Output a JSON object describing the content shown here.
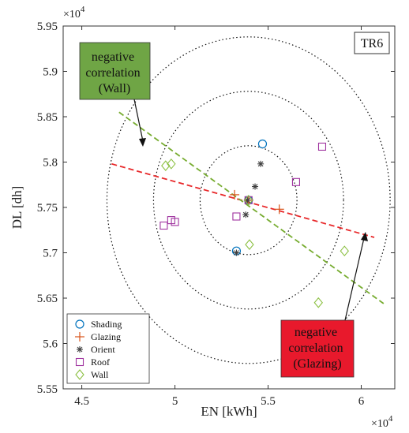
{
  "chart_data": {
    "type": "scatter",
    "title": "TR6",
    "xlabel": "EN [kWh]",
    "ylabel": "DL [dh]",
    "x_exponent": "×10",
    "y_exponent": "×10",
    "exponent_power": "4",
    "xlim": [
      44000,
      61800
    ],
    "ylim": [
      55500,
      59500
    ],
    "xticks": [
      45000,
      50000,
      55000,
      60000
    ],
    "xtick_labels": [
      "4.5",
      "5",
      "5.5",
      "6"
    ],
    "yticks": [
      55500,
      56000,
      56500,
      57000,
      57500,
      58000,
      58500,
      59000,
      59500
    ],
    "ytick_labels": [
      "5.55",
      "5.6",
      "5.65",
      "5.7",
      "5.75",
      "5.8",
      "5.85",
      "5.9",
      "5.95"
    ],
    "grid": false,
    "legend_position": "bottom-left",
    "series": [
      {
        "name": "Shading",
        "marker": "circle",
        "color": "#0072BD",
        "points": [
          [
            54700,
            58200
          ],
          [
            53300,
            57020
          ],
          [
            53950,
            57580
          ]
        ]
      },
      {
        "name": "Glazing",
        "marker": "plus",
        "color": "#D95319",
        "points": [
          [
            53200,
            57640
          ],
          [
            55600,
            57480
          ],
          [
            53950,
            57580
          ]
        ]
      },
      {
        "name": "Orient",
        "marker": "asterisk",
        "color": "#404040",
        "points": [
          [
            54600,
            57980
          ],
          [
            54300,
            57730
          ],
          [
            53800,
            57420
          ],
          [
            53900,
            57580
          ],
          [
            53300,
            57000
          ]
        ]
      },
      {
        "name": "Roof",
        "marker": "square",
        "color": "#A034A0",
        "points": [
          [
            57900,
            58170
          ],
          [
            56500,
            57780
          ],
          [
            53300,
            57400
          ],
          [
            49800,
            57360
          ],
          [
            50000,
            57340
          ],
          [
            49400,
            57300
          ],
          [
            53950,
            57580
          ]
        ]
      },
      {
        "name": "Wall",
        "marker": "diamond",
        "color": "#8CC043",
        "points": [
          [
            49800,
            57980
          ],
          [
            49500,
            57960
          ],
          [
            54000,
            57090
          ],
          [
            59100,
            57020
          ],
          [
            57700,
            56450
          ],
          [
            53950,
            57580
          ]
        ]
      }
    ],
    "circles": {
      "center": [
        53950,
        57580
      ],
      "radii_x": [
        2600,
        5100,
        7600
      ],
      "radii_y": [
        60,
        120,
        180
      ]
    },
    "trend_lines": [
      {
        "name": "Glazing",
        "color": "#E8282A",
        "from": [
          46600,
          57980
        ],
        "to": [
          60700,
          57170
        ]
      },
      {
        "name": "Wall",
        "color": "#77AC30",
        "from": [
          47000,
          58550
        ],
        "to": [
          61200,
          56440
        ]
      }
    ],
    "annotations": [
      {
        "text_lines": [
          "negative",
          "correlation",
          "(Wall)"
        ],
        "fill": "#6FA545",
        "arrow_to": [
          48200,
          58100
        ]
      },
      {
        "text_lines": [
          "negative",
          "correlation",
          "(Glazing)"
        ],
        "fill": "#E8192C",
        "arrow_to": [
          60000,
          57230
        ]
      }
    ]
  }
}
